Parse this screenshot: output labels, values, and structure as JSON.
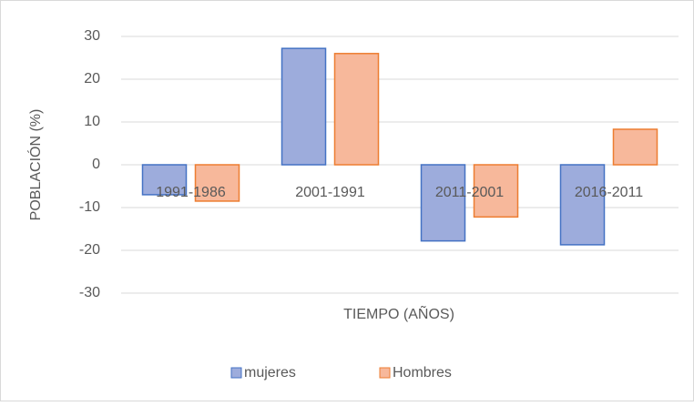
{
  "chart_data": {
    "type": "bar",
    "categories": [
      "1991-1986",
      "2001-1991",
      "2011-2001",
      "2016-2011"
    ],
    "series": [
      {
        "name": "mujeres",
        "color": "#9dacdc",
        "values": [
          -7,
          27.2,
          -17.8,
          -18.7
        ]
      },
      {
        "name": "Hombres",
        "color": "#f7b89b",
        "values": [
          -8.5,
          26,
          -12.2,
          8.3
        ]
      }
    ],
    "ylabel": "POBLACIÓN (%)",
    "xlabel": "TIEMPO (AÑOS)",
    "ylim": [
      -30,
      30
    ],
    "yticks": [
      -30,
      -20,
      -10,
      0,
      10,
      20,
      30
    ],
    "grid": true,
    "legend": "bottom"
  }
}
